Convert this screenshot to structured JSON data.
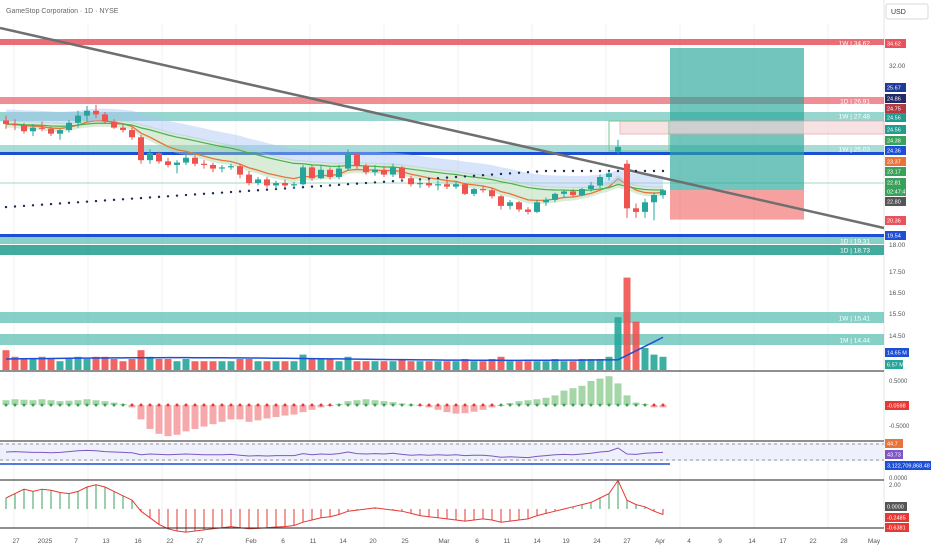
{
  "header": {
    "title": "GameStop Corporation · 1D · NYSE",
    "currency": "USD"
  },
  "chart_data": {
    "type": "candlestick",
    "symbol": "GameStop Corporation · 1D · NYSE",
    "ylim": [
      18.5,
      35.2
    ],
    "price_ticks": [
      "32.00",
      "30.00",
      "28.00",
      "26.00",
      "24.00",
      "22.00",
      "20.00",
      "18.00",
      "17.50",
      "16.50",
      "15.50",
      "14.50"
    ],
    "price_tick_values": [
      32,
      30,
      28,
      26,
      24,
      22,
      20,
      18
    ],
    "x_labels": [
      "27",
      "2025",
      "7",
      "13",
      "16",
      "22",
      "27",
      "Feb",
      "6",
      "11",
      "14",
      "20",
      "25",
      "Mar",
      "6",
      "11",
      "14",
      "19",
      "24",
      "27",
      "Apr",
      "4",
      "9",
      "14",
      "17",
      "22",
      "28",
      "May"
    ],
    "candles": [
      [
        28.6,
        29.0,
        27.9,
        28.3
      ],
      [
        28.3,
        28.7,
        27.8,
        28.2
      ],
      [
        28.2,
        28.4,
        27.5,
        27.7
      ],
      [
        27.7,
        28.3,
        27.3,
        28.0
      ],
      [
        28.0,
        28.5,
        27.7,
        27.9
      ],
      [
        27.9,
        28.1,
        27.3,
        27.5
      ],
      [
        27.5,
        27.9,
        27.0,
        27.8
      ],
      [
        27.8,
        28.6,
        27.6,
        28.4
      ],
      [
        28.4,
        29.4,
        28.0,
        29.0
      ],
      [
        29.0,
        29.8,
        28.5,
        29.4
      ],
      [
        29.4,
        29.9,
        28.8,
        29.1
      ],
      [
        29.1,
        29.3,
        28.3,
        28.5
      ],
      [
        28.5,
        28.7,
        27.9,
        28.0
      ],
      [
        28.0,
        28.3,
        27.6,
        27.8
      ],
      [
        27.8,
        28.0,
        27.0,
        27.2
      ],
      [
        27.2,
        27.4,
        25.0,
        25.3
      ],
      [
        25.3,
        26.2,
        25.0,
        25.9
      ],
      [
        25.9,
        26.0,
        25.0,
        25.2
      ],
      [
        25.2,
        25.5,
        24.7,
        24.9
      ],
      [
        24.9,
        25.3,
        24.2,
        25.1
      ],
      [
        25.1,
        25.8,
        24.9,
        25.5
      ],
      [
        25.5,
        25.7,
        24.8,
        25.0
      ],
      [
        25.0,
        25.3,
        24.6,
        24.9
      ],
      [
        24.9,
        25.1,
        24.3,
        24.6
      ],
      [
        24.6,
        24.9,
        24.3,
        24.7
      ],
      [
        24.7,
        25.0,
        24.5,
        24.8
      ],
      [
        24.8,
        25.0,
        23.8,
        24.1
      ],
      [
        24.1,
        24.4,
        23.2,
        23.4
      ],
      [
        23.4,
        23.9,
        23.2,
        23.7
      ],
      [
        23.7,
        23.9,
        23.0,
        23.2
      ],
      [
        23.2,
        23.6,
        22.9,
        23.4
      ],
      [
        23.4,
        23.7,
        23.0,
        23.2
      ],
      [
        23.2,
        23.5,
        22.9,
        23.3
      ],
      [
        23.3,
        24.9,
        23.2,
        24.7
      ],
      [
        24.7,
        24.9,
        23.6,
        23.8
      ],
      [
        23.8,
        24.9,
        23.7,
        24.5
      ],
      [
        24.5,
        24.7,
        23.7,
        23.9
      ],
      [
        23.9,
        24.9,
        23.7,
        24.6
      ],
      [
        24.6,
        26.2,
        24.4,
        25.8
      ],
      [
        25.8,
        25.9,
        24.6,
        24.8
      ],
      [
        24.8,
        25.0,
        24.1,
        24.3
      ],
      [
        24.3,
        24.9,
        24.0,
        24.5
      ],
      [
        24.5,
        24.8,
        23.9,
        24.1
      ],
      [
        24.1,
        25.0,
        23.9,
        24.7
      ],
      [
        24.7,
        24.8,
        23.5,
        23.8
      ],
      [
        23.8,
        24.0,
        23.1,
        23.3
      ],
      [
        23.3,
        23.7,
        23.0,
        23.4
      ],
      [
        23.4,
        23.7,
        23.0,
        23.2
      ],
      [
        23.2,
        23.6,
        22.8,
        23.3
      ],
      [
        23.3,
        23.7,
        22.9,
        23.1
      ],
      [
        23.1,
        23.5,
        22.9,
        23.3
      ],
      [
        23.3,
        23.4,
        22.4,
        22.5
      ],
      [
        22.5,
        23.0,
        22.3,
        22.9
      ],
      [
        22.9,
        23.2,
        22.6,
        22.8
      ],
      [
        22.8,
        23.0,
        22.1,
        22.3
      ],
      [
        22.3,
        22.4,
        21.2,
        21.5
      ],
      [
        21.5,
        22.0,
        21.2,
        21.8
      ],
      [
        21.8,
        21.9,
        21.0,
        21.2
      ],
      [
        21.2,
        21.4,
        20.8,
        21.0
      ],
      [
        21.0,
        22.0,
        20.9,
        21.8
      ],
      [
        21.8,
        22.2,
        21.5,
        22.0
      ],
      [
        22.0,
        22.6,
        21.8,
        22.5
      ],
      [
        22.5,
        22.8,
        22.2,
        22.7
      ],
      [
        22.7,
        22.9,
        22.2,
        22.4
      ],
      [
        22.4,
        23.0,
        22.3,
        22.9
      ],
      [
        22.9,
        23.5,
        22.7,
        23.2
      ],
      [
        23.2,
        24.1,
        23.0,
        23.9
      ],
      [
        23.9,
        24.4,
        23.6,
        24.2
      ],
      [
        26.0,
        27.0,
        25.8,
        26.4
      ],
      [
        25.0,
        25.3,
        20.5,
        21.3
      ],
      [
        21.3,
        21.7,
        20.5,
        21.0
      ],
      [
        21.0,
        22.1,
        20.5,
        21.8
      ],
      [
        21.8,
        22.6,
        20.3,
        22.4
      ],
      [
        22.4,
        22.9,
        22.1,
        22.8
      ]
    ],
    "resistance_levels": [
      {
        "label": "1W | 34.62",
        "price": 34.62
      },
      {
        "label": "1D | 26.91",
        "price": 26.91
      },
      {
        "label": "1W | 27.48",
        "price": 27.48
      },
      {
        "label": "1W | 25.03",
        "price": 25.03
      },
      {
        "label": "1D | 19.31",
        "price": 19.31
      },
      {
        "label": "1D | 18.73",
        "price": 18.73
      },
      {
        "label": "1W | 15.41",
        "price": 15.41
      },
      {
        "label": "1M | 14.44",
        "price": 14.44
      }
    ],
    "price_badges": [
      {
        "text": "34.62",
        "price": 34.62,
        "color": "#e8525c"
      },
      {
        "text": "25.67",
        "price": 25.67,
        "color": "#1e3a9a"
      },
      {
        "text": "24.86",
        "price": 24.86,
        "color": "#222b66"
      },
      {
        "text": "24.75",
        "price": 24.75,
        "color": "#b33a44"
      },
      {
        "text": "24.56",
        "price": 24.56,
        "color": "#229c8d"
      },
      {
        "text": "24.56",
        "price": 24.56,
        "color": "#229c8d"
      },
      {
        "text": "24.38",
        "price": 24.38,
        "color": "#3aa15c"
      },
      {
        "text": "24.36",
        "price": 24.36,
        "color": "#1d4fd6"
      },
      {
        "text": "23.37",
        "price": 23.37,
        "color": "#e8743a"
      },
      {
        "text": "23.17",
        "price": 23.17,
        "color": "#3aa15c"
      },
      {
        "text": "22.81",
        "price": 22.81,
        "color": "#3aa15c"
      },
      {
        "text": "02:47:47",
        "price": 22.81,
        "color": "#3aa15c"
      },
      {
        "text": "22.80",
        "price": 22.8,
        "color": "#555555"
      },
      {
        "text": "20.36",
        "price": 20.36,
        "color": "#e8525c"
      },
      {
        "text": "19.54",
        "price": 19.54,
        "color": "#1d4fd6"
      }
    ],
    "trade_box": {
      "entry": 22.81,
      "target": 34.62,
      "stop": 20.36
    },
    "volume": {
      "values": [
        9,
        6,
        5,
        5,
        6,
        5,
        4,
        5,
        6,
        5,
        6,
        6,
        5,
        4,
        5,
        9,
        6,
        5,
        5,
        4,
        5,
        4,
        4,
        4,
        4,
        4,
        5,
        5,
        4,
        4,
        4,
        4,
        4,
        7,
        5,
        5,
        5,
        4,
        6,
        4,
        4,
        4,
        4,
        4,
        5,
        4,
        4,
        4,
        4,
        4,
        4,
        5,
        4,
        4,
        5,
        6,
        4,
        4,
        4,
        4,
        4,
        5,
        4,
        4,
        5,
        5,
        5,
        6,
        24,
        42,
        22,
        10,
        7,
        6
      ],
      "ma_label": "14.65 M",
      "last_label": "6.57 M"
    },
    "histogram": {
      "values": [
        0.1,
        0.12,
        0.11,
        0.1,
        0.12,
        0.1,
        0.08,
        0.09,
        0.1,
        0.12,
        0.1,
        0.08,
        0.05,
        0.02,
        -0.05,
        -0.3,
        -0.5,
        -0.6,
        -0.65,
        -0.62,
        -0.55,
        -0.5,
        -0.45,
        -0.4,
        -0.35,
        -0.3,
        -0.3,
        -0.35,
        -0.32,
        -0.28,
        -0.25,
        -0.22,
        -0.2,
        -0.15,
        -0.1,
        -0.05,
        -0.02,
        0.02,
        0.08,
        0.1,
        0.12,
        0.1,
        0.08,
        0.06,
        0.03,
        0.01,
        -0.02,
        -0.05,
        -0.1,
        -0.15,
        -0.18,
        -0.17,
        -0.14,
        -0.1,
        -0.05,
        0.0,
        0.04,
        0.08,
        0.1,
        0.12,
        0.15,
        0.2,
        0.3,
        0.35,
        0.4,
        0.5,
        0.55,
        0.6,
        0.45,
        0.2,
        0.05,
        0.02,
        -0.05,
        -0.05
      ],
      "ticks": [
        "0.5000",
        "-0.5000"
      ],
      "last_label": "-0.0598"
    },
    "rsi": {
      "values": [
        45,
        46,
        45,
        44,
        44,
        43,
        44,
        46,
        48,
        49,
        48,
        46,
        45,
        44,
        43,
        38,
        40,
        39,
        38,
        39,
        40,
        39,
        38,
        38,
        38,
        39,
        37,
        35,
        36,
        35,
        36,
        36,
        36,
        41,
        38,
        40,
        39,
        41,
        45,
        41,
        40,
        41,
        40,
        42,
        39,
        37,
        38,
        37,
        38,
        37,
        38,
        36,
        37,
        37,
        35,
        32,
        33,
        32,
        31,
        34,
        36,
        38,
        39,
        38,
        40,
        42,
        45,
        47,
        55,
        40,
        39,
        42,
        43,
        44
      ],
      "labels": [
        "44.7",
        "43.73"
      ]
    },
    "obv_label": "3,122,709,868.48",
    "oscillator": {
      "values": [
        0.5,
        0.7,
        0.9,
        0.8,
        0.9,
        0.85,
        0.75,
        0.7,
        0.8,
        1.0,
        1.1,
        1.0,
        0.8,
        0.6,
        0.4,
        -0.1,
        -0.4,
        -0.7,
        -0.9,
        -1.0,
        -1.05,
        -1.0,
        -0.95,
        -0.9,
        -0.85,
        -0.8,
        -0.85,
        -0.9,
        -0.88,
        -0.85,
        -0.82,
        -0.8,
        -0.75,
        -0.6,
        -0.5,
        -0.4,
        -0.35,
        -0.25,
        -0.1,
        -0.05,
        0.0,
        0.05,
        0.0,
        -0.05,
        -0.1,
        -0.2,
        -0.3,
        -0.35,
        -0.4,
        -0.45,
        -0.5,
        -0.55,
        -0.5,
        -0.45,
        -0.5,
        -0.6,
        -0.55,
        -0.5,
        -0.45,
        -0.3,
        -0.2,
        -0.1,
        0.0,
        0.1,
        0.2,
        0.3,
        0.5,
        0.7,
        1.3,
        0.4,
        0.2,
        0.1,
        -0.1,
        -0.25
      ],
      "ticks": [
        "2.00",
        "0.0000"
      ],
      "labels": [
        "0.0000",
        "-0.2485",
        "-0.6381"
      ]
    }
  }
}
